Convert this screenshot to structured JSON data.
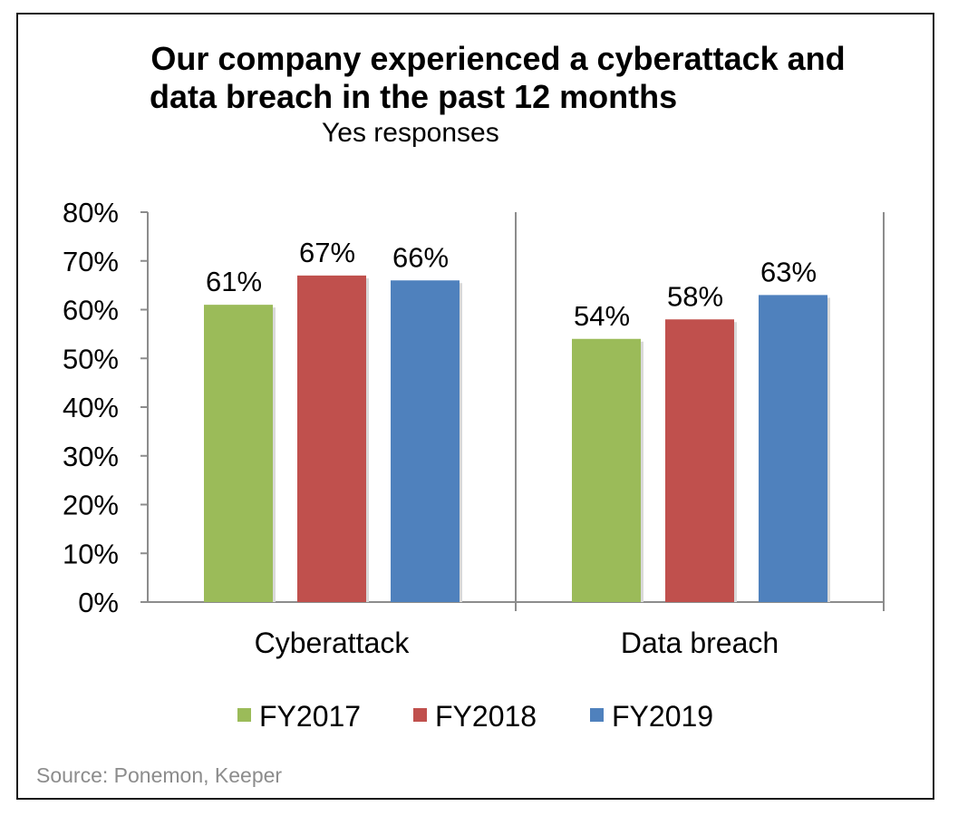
{
  "title_line1": "Our company experienced a cyberattack and",
  "title_line2": "data breach in the past 12 months",
  "subtitle": "Yes responses",
  "source": "Source: Ponemon, Keeper",
  "chart_data": {
    "type": "bar",
    "categories": [
      "Cyberattack",
      "Data breach"
    ],
    "series": [
      {
        "name": "FY2017",
        "values": [
          61,
          54
        ],
        "color": "#9bbb59"
      },
      {
        "name": "FY2018",
        "values": [
          67,
          58
        ],
        "color": "#c0504d"
      },
      {
        "name": "FY2019",
        "values": [
          66,
          63
        ],
        "color": "#4f81bd"
      }
    ],
    "data_labels": [
      [
        "61%",
        "67%",
        "66%"
      ],
      [
        "54%",
        "58%",
        "63%"
      ]
    ],
    "yticks": [
      "0%",
      "10%",
      "20%",
      "30%",
      "40%",
      "50%",
      "60%",
      "70%",
      "80%"
    ],
    "ylim": [
      0,
      80
    ],
    "legend_position": "bottom",
    "grid": false
  }
}
